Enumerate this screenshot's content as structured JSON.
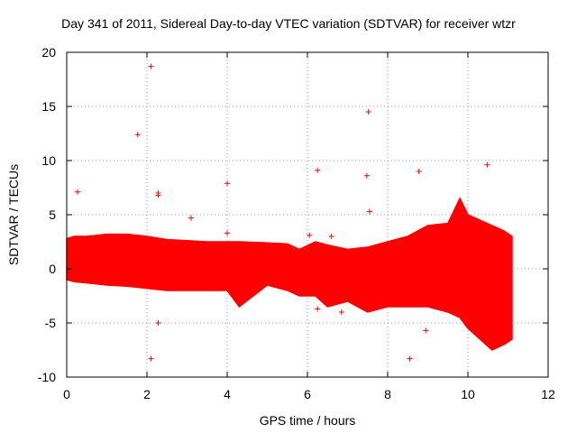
{
  "chart_data": {
    "type": "scatter",
    "title": "Day 341 of 2011, Sidereal Day-to-day VTEC variation (SDTVAR) for receiver wtzr",
    "xlabel": "GPS time / hours",
    "ylabel": "SDTVAR / TECUs",
    "xlim": [
      0,
      12
    ],
    "ylim": [
      -10,
      20
    ],
    "xticks": [
      0,
      2,
      4,
      6,
      8,
      10,
      12
    ],
    "yticks": [
      -10,
      -5,
      0,
      5,
      10,
      15,
      20
    ],
    "grid": true,
    "marker": "+",
    "color": "#ff0000",
    "band": {
      "description": "dense scatter envelope (upper and lower bounds of the point cloud)",
      "x": [
        0.0,
        0.2,
        0.5,
        1.0,
        1.5,
        2.0,
        2.5,
        3.0,
        3.5,
        4.0,
        4.3,
        5.0,
        5.5,
        5.8,
        6.2,
        6.5,
        7.0,
        7.5,
        8.0,
        8.5,
        9.0,
        9.5,
        9.8,
        10.0,
        10.3,
        10.6,
        10.9,
        11.1
      ],
      "upper": [
        2.8,
        3.0,
        3.0,
        3.2,
        3.2,
        3.0,
        2.7,
        2.6,
        2.5,
        2.5,
        2.5,
        2.4,
        2.3,
        1.8,
        2.5,
        2.2,
        1.8,
        2.0,
        2.5,
        3.0,
        4.0,
        4.2,
        6.5,
        5.0,
        4.5,
        4.0,
        3.5,
        3.0
      ],
      "lower": [
        -1.0,
        -1.2,
        -1.3,
        -1.5,
        -1.6,
        -1.8,
        -2.0,
        -2.0,
        -2.0,
        -2.0,
        -3.5,
        -1.5,
        -2.0,
        -2.5,
        -2.5,
        -3.5,
        -3.0,
        -4.0,
        -3.5,
        -3.5,
        -3.5,
        -4.0,
        -4.5,
        -5.5,
        -6.5,
        -7.5,
        -7.0,
        -6.5
      ]
    },
    "outliers": [
      {
        "x": 0.27,
        "y": 7.1
      },
      {
        "x": 1.77,
        "y": 12.4
      },
      {
        "x": 2.1,
        "y": 18.7
      },
      {
        "x": 2.1,
        "y": -8.3
      },
      {
        "x": 2.28,
        "y": 6.8
      },
      {
        "x": 2.28,
        "y": 7.0
      },
      {
        "x": 2.28,
        "y": -5.0
      },
      {
        "x": 3.1,
        "y": 4.7
      },
      {
        "x": 4.0,
        "y": 7.9
      },
      {
        "x": 4.0,
        "y": 3.3
      },
      {
        "x": 6.05,
        "y": 3.1
      },
      {
        "x": 6.25,
        "y": 9.1
      },
      {
        "x": 6.25,
        "y": -3.7
      },
      {
        "x": 6.6,
        "y": 3.0
      },
      {
        "x": 6.85,
        "y": -4.0
      },
      {
        "x": 7.48,
        "y": 8.6
      },
      {
        "x": 7.52,
        "y": 14.5
      },
      {
        "x": 7.55,
        "y": 5.3
      },
      {
        "x": 8.55,
        "y": -8.3
      },
      {
        "x": 8.78,
        "y": 9.0
      },
      {
        "x": 8.95,
        "y": -5.7
      },
      {
        "x": 10.48,
        "y": 9.6
      }
    ]
  }
}
